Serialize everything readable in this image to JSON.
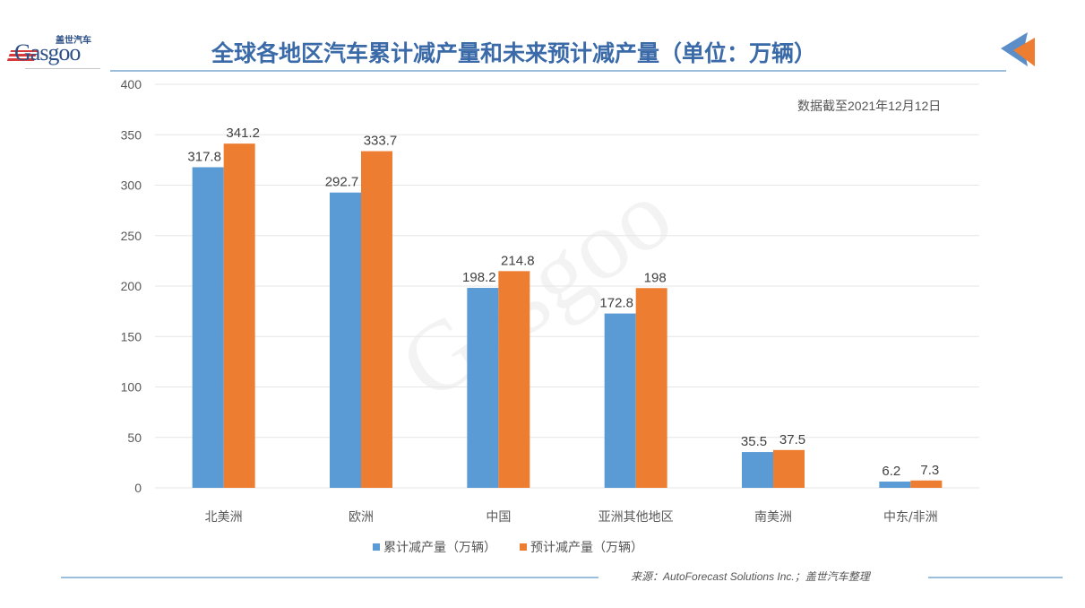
{
  "header": {
    "logo_text": "Gasgoo",
    "logo_cn": "盖世汽车",
    "title": "全球各地区汽车累计减产量和未来预计减产量（单位：万辆）",
    "date_note": "数据截至2021年12月12日"
  },
  "footer": {
    "source": "来源：AutoForecast Solutions Inc.；盖世汽车整理"
  },
  "colors": {
    "series_1": "#5b9bd5",
    "series_2": "#ed7d31",
    "title": "#3a6aa8",
    "gridline": "#e6e6e6"
  },
  "chart_data": {
    "type": "bar",
    "title": "全球各地区汽车累计减产量和未来预计减产量（单位：万辆）",
    "subtitle": "数据截至2021年12月12日",
    "xlabel": "",
    "ylabel": "",
    "ylim": [
      0,
      400
    ],
    "yticks": [
      0,
      50,
      100,
      150,
      200,
      250,
      300,
      350,
      400
    ],
    "grid": true,
    "legend_position": "bottom",
    "categories": [
      "北美洲",
      "欧洲",
      "中国",
      "亚洲其他地区",
      "南美洲",
      "中东/非洲"
    ],
    "series": [
      {
        "name": "累计减产量（万辆）",
        "color": "#5b9bd5",
        "values": [
          317.8,
          292.7,
          198.2,
          172.8,
          35.5,
          6.2
        ]
      },
      {
        "name": "预计减产量（万辆）",
        "color": "#ed7d31",
        "values": [
          341.2,
          333.7,
          214.8,
          198,
          37.5,
          7.3
        ]
      }
    ],
    "source": "来源：AutoForecast Solutions Inc.；盖世汽车整理"
  }
}
